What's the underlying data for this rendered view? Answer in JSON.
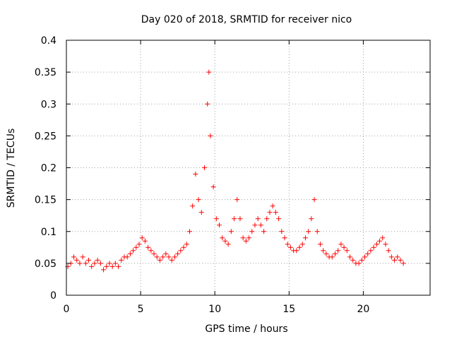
{
  "chart_data": {
    "type": "scatter",
    "title": "Day 020 of 2018, SRMTID for receiver nico",
    "xlabel": "GPS time / hours",
    "ylabel": "SRMTID / TECUs",
    "xlim": [
      0,
      24.5
    ],
    "ylim": [
      0,
      0.4
    ],
    "x_ticks": [
      0,
      5,
      10,
      15,
      20
    ],
    "x_tick_labels": [
      "0",
      "5",
      "10",
      "15",
      "20"
    ],
    "y_ticks": [
      0,
      0.05,
      0.1,
      0.15,
      0.2,
      0.25,
      0.3,
      0.35,
      0.4
    ],
    "y_tick_labels": [
      "0",
      "0.05",
      "0.1",
      "0.15",
      "0.2",
      "0.25",
      "0.3",
      "0.35",
      "0.4"
    ],
    "grid": true,
    "marker": "+",
    "colors": {
      "series": "#ff0000",
      "grid": "#a0a0a0",
      "axis": "#000000"
    },
    "x": [
      0.1,
      0.3,
      0.5,
      0.7,
      0.9,
      1.1,
      1.3,
      1.5,
      1.7,
      1.9,
      2.1,
      2.3,
      2.5,
      2.7,
      2.9,
      3.1,
      3.3,
      3.5,
      3.7,
      3.9,
      4.1,
      4.3,
      4.5,
      4.7,
      4.9,
      5.1,
      5.3,
      5.5,
      5.7,
      5.9,
      6.1,
      6.3,
      6.5,
      6.7,
      6.9,
      7.1,
      7.3,
      7.5,
      7.7,
      7.9,
      8.1,
      8.3,
      8.5,
      8.7,
      8.9,
      9.1,
      9.3,
      9.5,
      9.6,
      9.7,
      9.9,
      10.1,
      10.3,
      10.5,
      10.7,
      10.9,
      11.1,
      11.3,
      11.5,
      11.7,
      11.9,
      12.1,
      12.3,
      12.5,
      12.7,
      12.9,
      13.1,
      13.3,
      13.5,
      13.7,
      13.9,
      14.1,
      14.3,
      14.5,
      14.7,
      14.9,
      15.1,
      15.3,
      15.5,
      15.7,
      15.9,
      16.1,
      16.3,
      16.5,
      16.7,
      16.9,
      17.1,
      17.3,
      17.5,
      17.7,
      17.9,
      18.1,
      18.3,
      18.5,
      18.7,
      18.9,
      19.1,
      19.3,
      19.5,
      19.7,
      19.9,
      20.1,
      20.3,
      20.5,
      20.7,
      20.9,
      21.1,
      21.3,
      21.5,
      21.7,
      21.9,
      22.1,
      22.3,
      22.5,
      22.7
    ],
    "y": [
      0.045,
      0.05,
      0.06,
      0.055,
      0.05,
      0.06,
      0.05,
      0.055,
      0.045,
      0.05,
      0.055,
      0.05,
      0.04,
      0.045,
      0.05,
      0.045,
      0.05,
      0.045,
      0.055,
      0.06,
      0.06,
      0.065,
      0.07,
      0.075,
      0.08,
      0.09,
      0.085,
      0.075,
      0.07,
      0.065,
      0.06,
      0.055,
      0.06,
      0.065,
      0.06,
      0.055,
      0.06,
      0.065,
      0.07,
      0.075,
      0.08,
      0.1,
      0.14,
      0.19,
      0.15,
      0.13,
      0.2,
      0.3,
      0.35,
      0.25,
      0.17,
      0.12,
      0.11,
      0.09,
      0.085,
      0.08,
      0.1,
      0.12,
      0.15,
      0.12,
      0.09,
      0.085,
      0.09,
      0.1,
      0.11,
      0.12,
      0.11,
      0.1,
      0.12,
      0.13,
      0.14,
      0.13,
      0.12,
      0.1,
      0.09,
      0.08,
      0.075,
      0.07,
      0.07,
      0.075,
      0.08,
      0.09,
      0.1,
      0.12,
      0.15,
      0.1,
      0.08,
      0.07,
      0.065,
      0.06,
      0.06,
      0.065,
      0.07,
      0.08,
      0.075,
      0.07,
      0.06,
      0.055,
      0.05,
      0.05,
      0.055,
      0.06,
      0.065,
      0.07,
      0.075,
      0.08,
      0.085,
      0.09,
      0.08,
      0.07,
      0.06,
      0.055,
      0.06,
      0.055,
      0.05
    ]
  }
}
